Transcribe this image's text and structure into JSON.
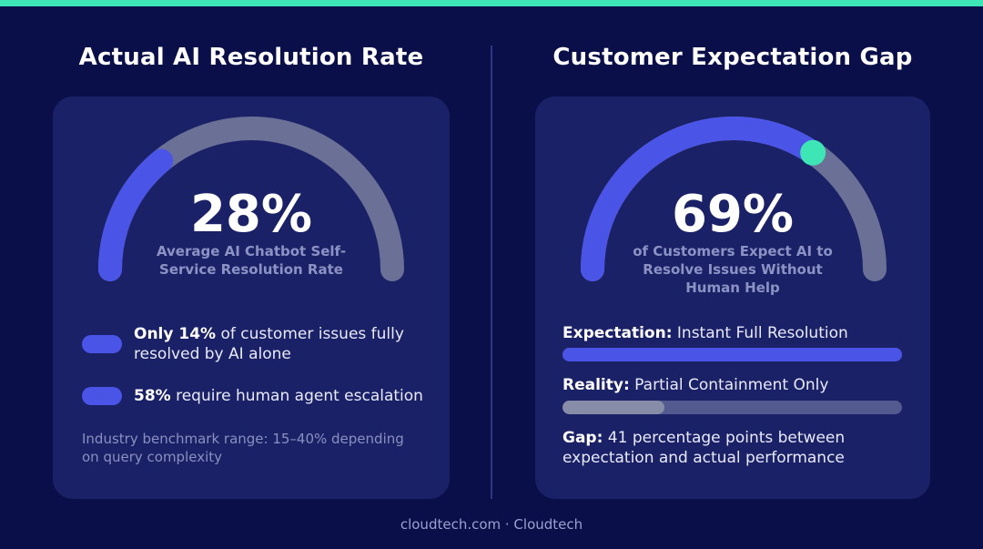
{
  "colors": {
    "accent": "#3de6b4",
    "bar_blue": "#4a55e8",
    "track": "#535a8f",
    "background": "#0a0f4a"
  },
  "left": {
    "title": "Actual AI Resolution Rate",
    "value_pct": 28,
    "big_value": "28%",
    "caption": "Average AI Chatbot Self-Service Resolution Rate",
    "stat1_bold": "Only 14%",
    "stat1_rest": " of customer issues fully resolved by AI alone",
    "stat2_bold": "58%",
    "stat2_rest": " require human agent escalation",
    "note": "Industry benchmark range: 15–40% depending on query complexity"
  },
  "right": {
    "title": "Customer Expectation Gap",
    "value_pct": 69,
    "big_value": "69%",
    "caption": "of Customers Expect AI to Resolve Issues Without Human Help",
    "expectation_bold": "Expectation:",
    "expectation_rest": " Instant Full Resolution",
    "reality_bold": "Reality:",
    "reality_rest": " Partial Containment Only",
    "gap_bold": "Gap:",
    "gap_rest": " 41 percentage points between expectation and actual performance"
  },
  "chart_data": [
    {
      "type": "gauge",
      "title": "Actual AI Resolution Rate",
      "value": 28,
      "unit": "%",
      "range": [
        0,
        100
      ]
    },
    {
      "type": "gauge",
      "title": "Customer Expectation Gap",
      "value": 69,
      "unit": "%",
      "range": [
        0,
        100
      ]
    },
    {
      "type": "bar",
      "categories": [
        "Expectation",
        "Reality"
      ],
      "values": [
        100,
        30
      ],
      "unit": "%",
      "ylim": [
        0,
        100
      ]
    }
  ],
  "footer": "cloudtech.com · Cloudtech"
}
